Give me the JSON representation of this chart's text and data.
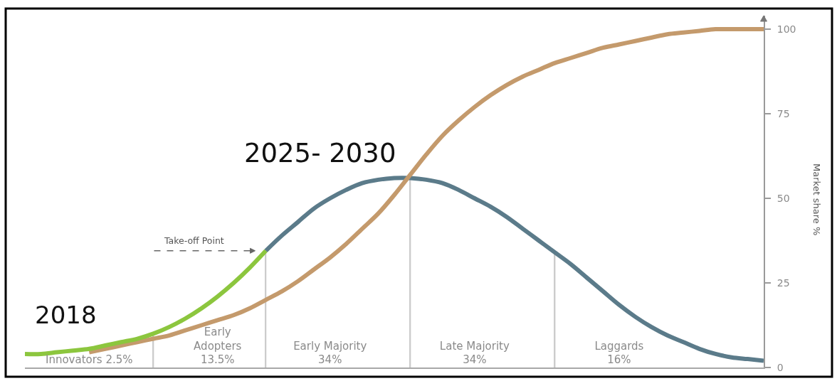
{
  "chart_data": {
    "type": "line",
    "categories": [
      null,
      null,
      null,
      null,
      "Innovators 2.5%",
      null,
      null,
      null,
      null,
      null,
      null,
      null,
      "Early\nAdopters\n13.5%",
      null,
      null,
      null,
      null,
      null,
      null,
      "Early Majority\n34%",
      null,
      null,
      null,
      null,
      null,
      null,
      null,
      null,
      "Late Majority\n34%",
      null,
      null,
      null,
      null,
      null,
      null,
      null,
      null,
      "Laggards\n16%",
      null,
      null,
      null,
      null,
      null,
      null,
      null,
      null,
      null
    ],
    "series": [
      {
        "type": "bar",
        "color": "#cccccc",
        "values": [
          null,
          null,
          null,
          null,
          null,
          null,
          null,
          null,
          10,
          null,
          null,
          null,
          null,
          null,
          null,
          34.5,
          null,
          null,
          null,
          null,
          null,
          null,
          null,
          null,
          56,
          null,
          null,
          null,
          null,
          null,
          null,
          null,
          null,
          34,
          null,
          null,
          null,
          null,
          null,
          null,
          null,
          null,
          null,
          null,
          null,
          null,
          null
        ]
      },
      {
        "color": "#5b7b8a",
        "values": [
          null,
          null,
          null,
          null,
          null,
          null,
          null,
          null,
          null,
          null,
          null,
          null,
          null,
          null,
          null,
          34.5,
          39,
          43,
          47,
          50,
          52.5,
          54.5,
          55.5,
          56,
          56,
          55.5,
          54.5,
          52.5,
          50,
          47.5,
          44.5,
          41,
          37.5,
          34,
          30.5,
          26.5,
          22.5,
          18.5,
          15,
          12,
          9.5,
          7.5,
          5.5,
          4,
          3,
          2.5,
          2
        ]
      },
      {
        "color": "#c49a6c",
        "values": [
          null,
          null,
          null,
          null,
          4.5,
          5.5,
          6.5,
          7.5,
          8.5,
          9.5,
          11,
          12.5,
          14,
          15.5,
          17.5,
          20,
          22.5,
          25.5,
          29,
          32.5,
          36.5,
          41,
          45.5,
          51,
          57,
          63,
          68.5,
          73,
          77,
          80.5,
          83.5,
          86,
          88,
          90,
          91.5,
          93,
          94.5,
          95.5,
          96.5,
          97.5,
          98.5,
          99,
          99.5,
          100,
          100,
          100,
          100
        ]
      },
      {
        "color": "#8cc63e",
        "values": [
          4,
          4,
          4.5,
          5,
          5.5,
          6.5,
          7.5,
          8.5,
          10,
          12,
          14.5,
          17.5,
          21,
          25,
          29.5,
          34.5,
          null,
          null,
          null,
          null,
          null,
          null,
          null,
          null,
          null,
          null,
          null,
          null,
          null,
          null,
          null,
          null,
          null,
          null,
          null,
          null,
          null,
          null,
          null,
          null,
          null,
          null,
          null,
          null,
          null,
          null,
          null
        ]
      }
    ],
    "ylabel": "Market share %",
    "ylim": [
      0,
      104
    ],
    "yticks": [
      0,
      25,
      50,
      75,
      100
    ],
    "annotations": [
      "2018",
      "2025- 2030",
      "Take-off Point"
    ]
  }
}
